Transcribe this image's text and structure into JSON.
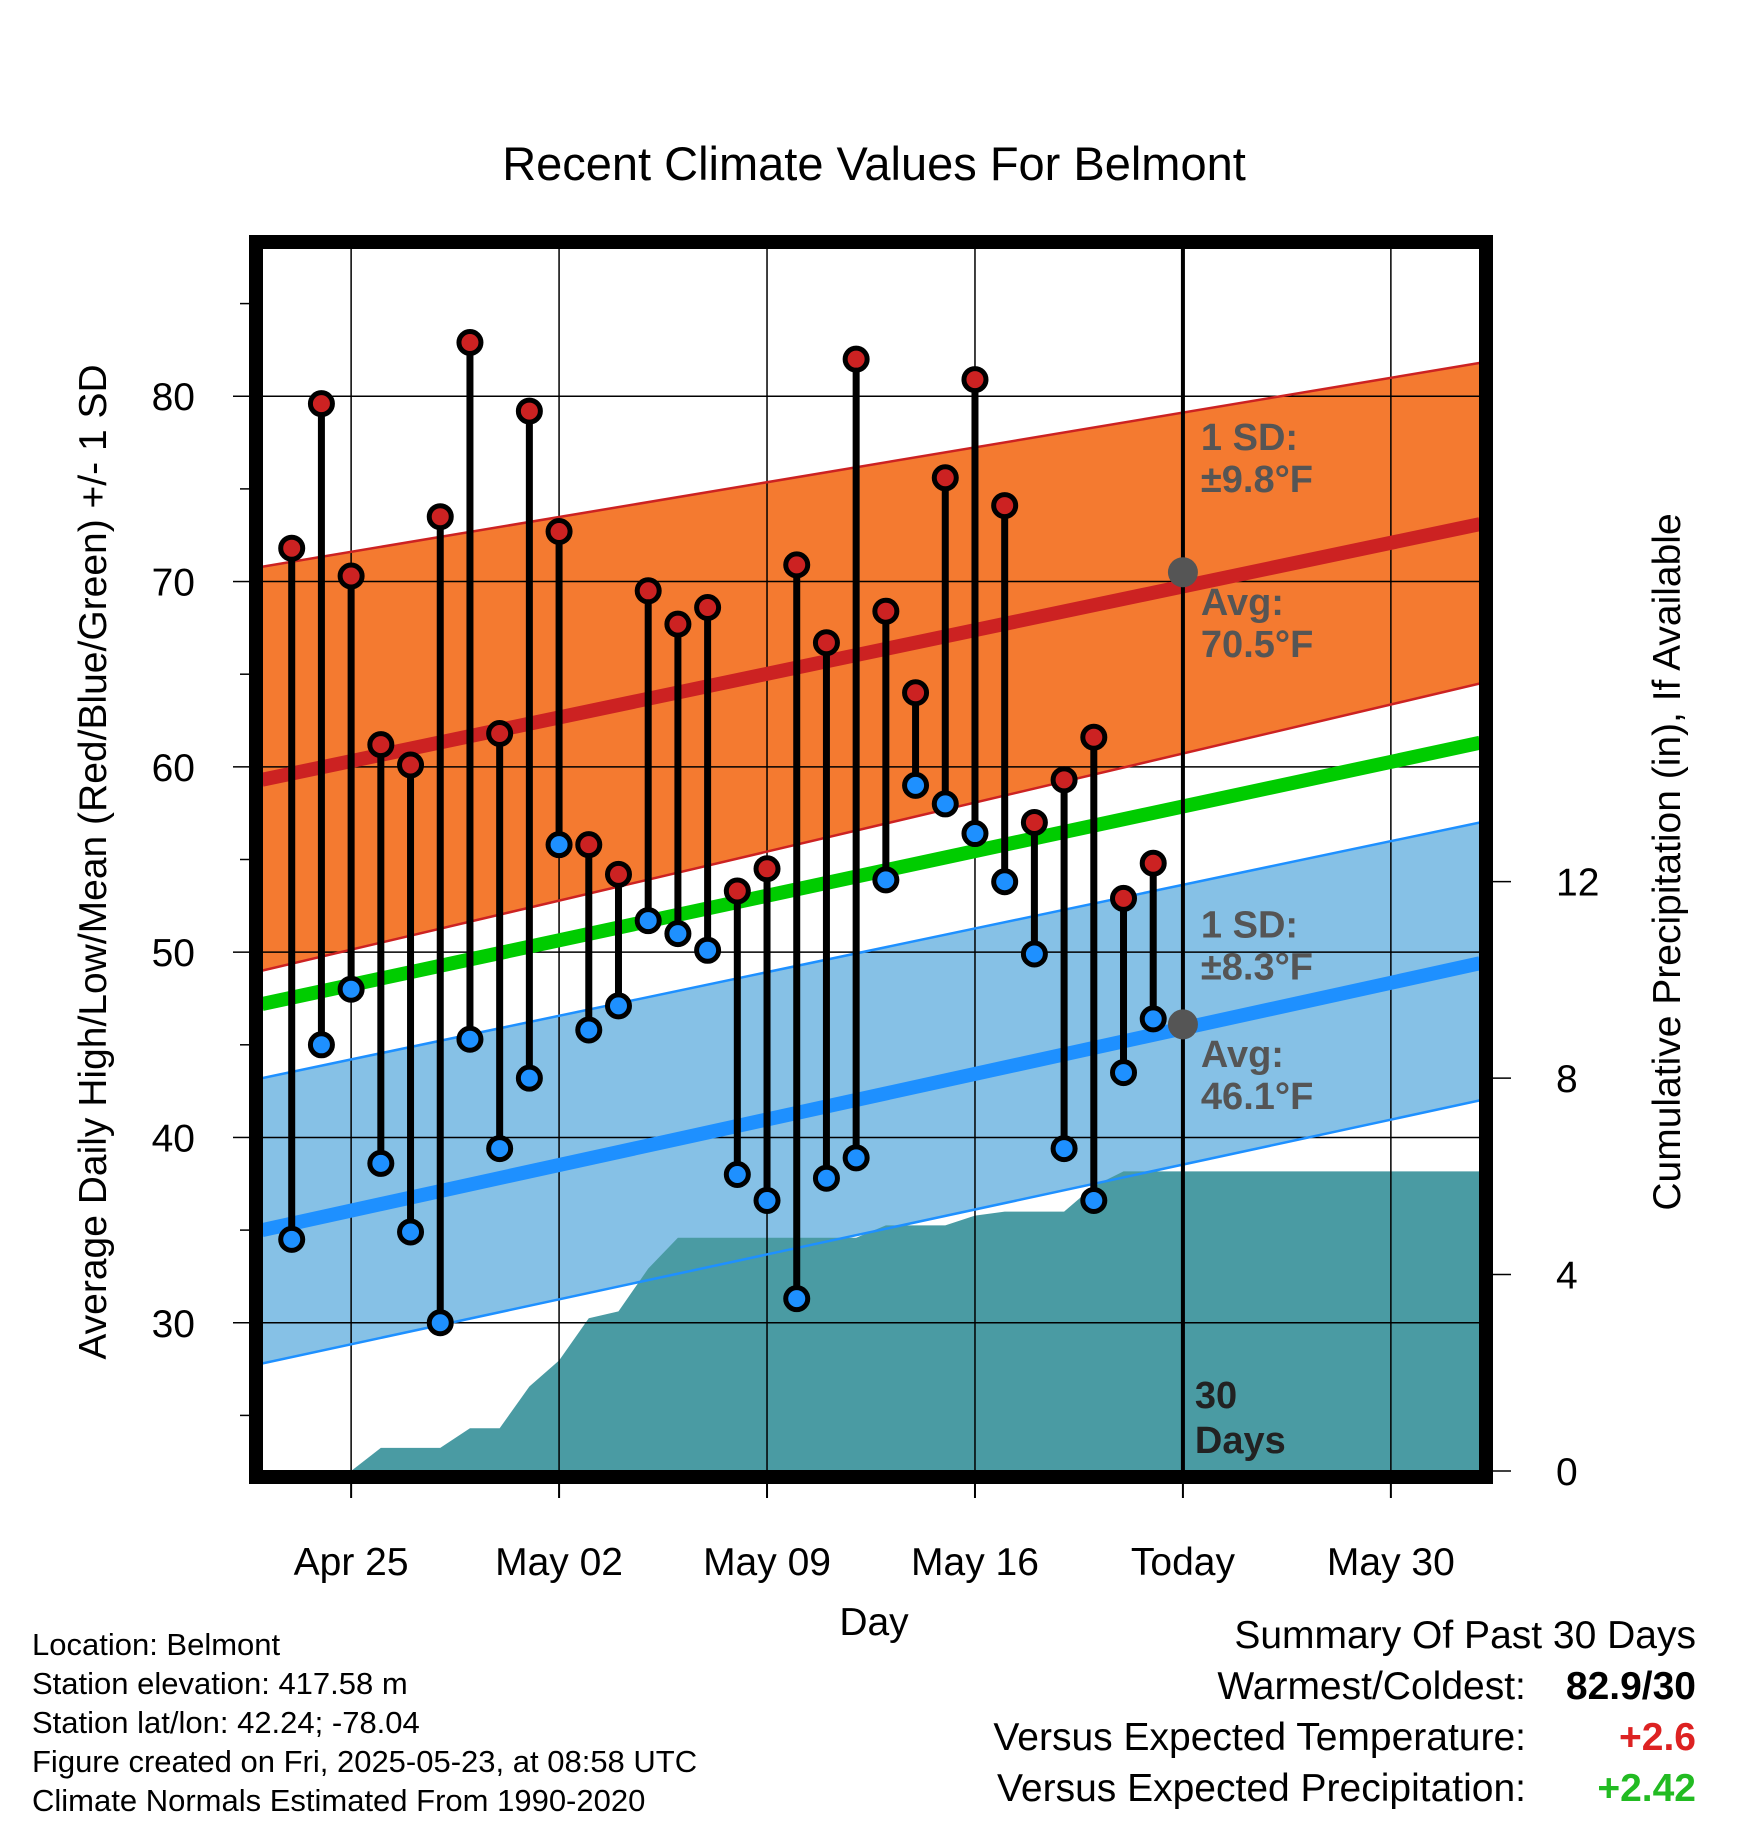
{
  "chart_data": {
    "type": "line",
    "title": "Recent Climate Values For Belmont",
    "xlabel": "Day",
    "ylabel_left": "Average Daily High/Low/Mean (Red/Blue/Green) +/- 1 SD",
    "ylabel_right": "Cumulative Precipitation (in), If Available",
    "x_ticks": [
      {
        "day": 0,
        "label": "Apr 25"
      },
      {
        "day": 7,
        "label": "May 02"
      },
      {
        "day": 14,
        "label": "May 09"
      },
      {
        "day": 21,
        "label": "May 16"
      },
      {
        "day": 28,
        "label": "Today"
      },
      {
        "day": 35,
        "label": "May 30"
      }
    ],
    "xlim": [
      -3,
      38
    ],
    "ylim_left": [
      22,
      88
    ],
    "y_ticks_left": [
      30,
      40,
      50,
      60,
      70,
      80
    ],
    "ylim_right": [
      0,
      24.9
    ],
    "y_ticks_right": [
      0,
      4,
      8,
      12
    ],
    "today_day": 28,
    "today_label": [
      "30",
      "Days"
    ],
    "colors": {
      "high": "#cc2222",
      "low": "#1e90ff",
      "mean": "#00cc00",
      "high_band": "#f47a30",
      "low_band": "#86c1e6",
      "precip": "#4a9ba3"
    },
    "normals": {
      "high_avg": {
        "start": 59.3,
        "end": 73.1
      },
      "high_sd_upper": {
        "start": 70.8,
        "end": 81.8
      },
      "high_sd_lower": {
        "start": 49.0,
        "end": 64.5
      },
      "low_avg": {
        "start": 35.0,
        "end": 49.4
      },
      "low_sd_upper": {
        "start": 43.2,
        "end": 57.0
      },
      "low_sd_lower": {
        "start": 27.8,
        "end": 42.0
      },
      "mean": {
        "start": 47.2,
        "end": 61.3
      }
    },
    "annotations": {
      "high_sd": [
        "1 SD:",
        "±9.8°F"
      ],
      "high_avg": [
        "Avg:",
        "70.5°F"
      ],
      "high_avg_value": 70.5,
      "low_sd": [
        "1 SD:",
        "±8.3°F"
      ],
      "low_avg": [
        "Avg:",
        "46.1°F"
      ],
      "low_avg_value": 46.1
    },
    "daily": {
      "days": [
        -2,
        -1,
        0,
        1,
        2,
        3,
        4,
        5,
        6,
        7,
        8,
        9,
        10,
        11,
        12,
        13,
        14,
        15,
        16,
        17,
        18,
        19,
        20,
        21,
        22,
        23,
        24,
        25,
        26,
        27
      ],
      "highs": [
        71.8,
        79.6,
        70.3,
        61.2,
        60.1,
        73.5,
        82.9,
        61.8,
        79.2,
        72.7,
        55.8,
        54.2,
        69.5,
        67.7,
        68.6,
        53.3,
        54.5,
        70.9,
        66.7,
        82.0,
        68.4,
        64.0,
        75.6,
        80.9,
        74.1,
        57.0,
        59.3,
        61.6,
        52.9,
        54.8
      ],
      "lows": [
        34.5,
        45.0,
        48.0,
        38.6,
        34.9,
        30.0,
        45.3,
        39.4,
        43.2,
        55.8,
        45.8,
        47.1,
        51.7,
        51.0,
        50.1,
        38.0,
        36.6,
        31.3,
        37.8,
        38.9,
        53.9,
        59.0,
        58.0,
        56.4,
        53.8,
        49.9,
        39.4,
        36.6,
        43.5,
        46.4
      ]
    },
    "precip_cumulative": {
      "days": [
        0,
        1,
        2,
        3,
        4,
        5,
        6,
        7,
        8,
        9,
        10,
        11,
        12,
        13,
        14,
        15,
        16,
        17,
        18,
        19,
        20,
        21,
        22,
        23,
        24,
        25,
        26,
        27,
        28
      ],
      "values": [
        0.0,
        0.47,
        0.47,
        0.47,
        0.87,
        0.87,
        1.72,
        2.25,
        3.11,
        3.25,
        4.12,
        4.75,
        4.75,
        4.75,
        4.75,
        4.75,
        4.75,
        4.75,
        5.0,
        5.0,
        5.0,
        5.2,
        5.28,
        5.28,
        5.28,
        5.8,
        6.1,
        6.1,
        6.1
      ]
    }
  },
  "info": {
    "location": "Location: Belmont",
    "elevation": "Station elevation: 417.58 m",
    "latlon": "Station lat/lon: 42.24; -78.04",
    "created": "Figure created on Fri, 2025-05-23, at 08:58 UTC",
    "normals": "Climate Normals Estimated From 1990-2020"
  },
  "summary": {
    "title": "Summary Of Past 30 Days",
    "warmest_label": "Warmest/Coldest:",
    "warmest_value": "82.9/30",
    "temp_label": "Versus Expected Temperature:",
    "temp_value": "+2.6",
    "temp_color": "#dd2222",
    "precip_label": "Versus Expected Precipitation:",
    "precip_value": "+2.42",
    "precip_color": "#22bb22"
  }
}
